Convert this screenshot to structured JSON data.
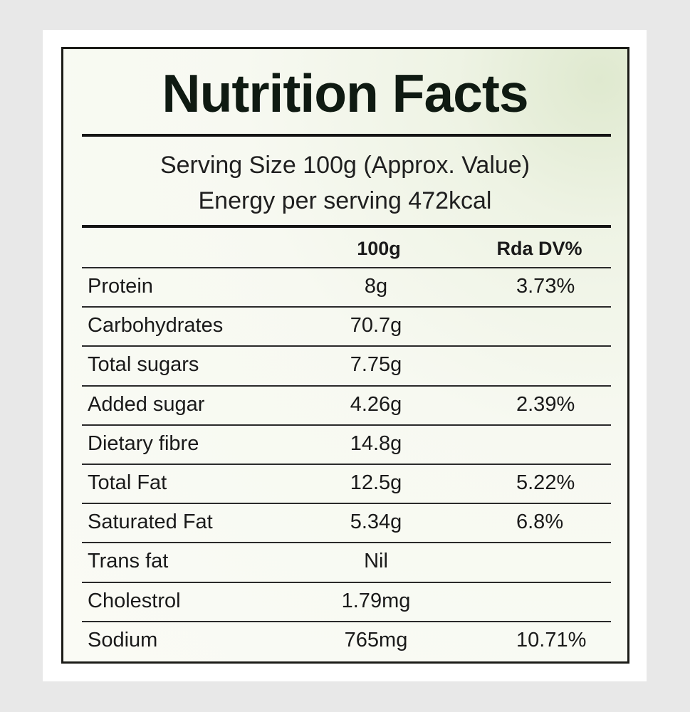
{
  "header": {
    "title": "Nutrition Facts",
    "serving_size": "Serving Size 100g (Approx. Value)",
    "energy": "Energy per serving 472kcal"
  },
  "table": {
    "columns": [
      "100g",
      "Rda DV%"
    ],
    "rows": [
      {
        "nutrient": "Protein",
        "per_100g": "8g",
        "rda_dv": "3.73%"
      },
      {
        "nutrient": "Carbohydrates",
        "per_100g": "70.7g"
      },
      {
        "nutrient": "Total sugars",
        "per_100g": "7.75g"
      },
      {
        "nutrient": "Added sugar",
        "per_100g": "4.26g",
        "rda_dv": "2.39%"
      },
      {
        "nutrient": "Dietary fibre",
        "per_100g": "14.8g"
      },
      {
        "nutrient": "Total Fat",
        "per_100g": "12.5g",
        "rda_dv": "5.22%"
      },
      {
        "nutrient": "Saturated Fat",
        "per_100g": "5.34g",
        "rda_dv": "6.8%"
      },
      {
        "nutrient": "Trans fat",
        "per_100g": "Nil"
      },
      {
        "nutrient": "Cholestrol",
        "per_100g": "1.79mg"
      },
      {
        "nutrient": "Sodium",
        "per_100g": "765mg",
        "rda_dv": "10.71%"
      }
    ]
  }
}
